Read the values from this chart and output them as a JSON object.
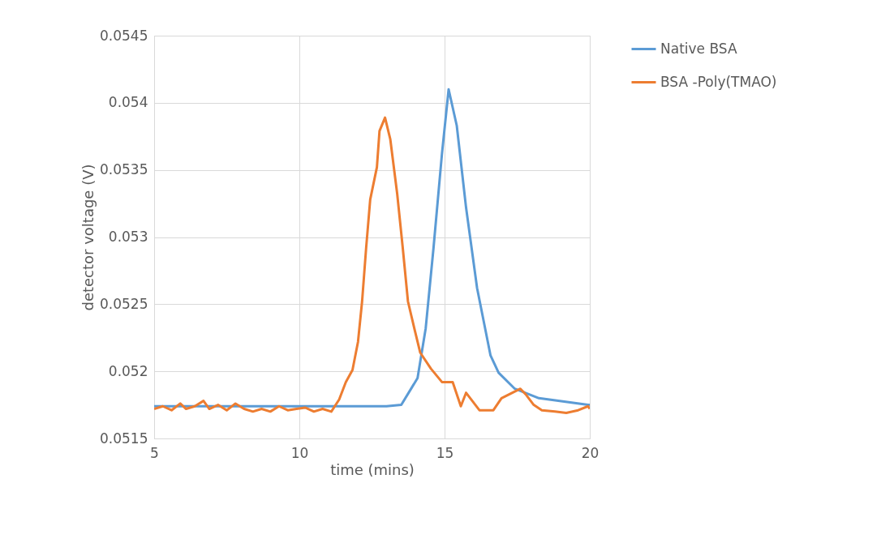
{
  "chart_data": {
    "type": "line",
    "xlabel": "time (mins)",
    "ylabel": "detector voltage (V)",
    "xlim": [
      5,
      20
    ],
    "xticks": [
      5,
      10,
      15,
      20
    ],
    "ylim": [
      0.0515,
      0.0545
    ],
    "yticks": [
      0.0515,
      0.052,
      0.0525,
      0.053,
      0.0535,
      0.054,
      0.0545
    ],
    "grid": true,
    "legend": "top right",
    "line_style": "solid",
    "marker": "none",
    "series": [
      {
        "name": "Native  BSA",
        "color": "#5b9bd5",
        "x": [
          5,
          8,
          11,
          13,
          13.51,
          14.07,
          14.35,
          14.62,
          14.91,
          15.14,
          15.42,
          15.74,
          16.12,
          16.58,
          16.86,
          17.42,
          18.25,
          19.94,
          20
        ],
        "values": [
          0.05174,
          0.05174,
          0.05174,
          0.05174,
          0.05175,
          0.05195,
          0.05232,
          0.05292,
          0.05362,
          0.0541,
          0.05383,
          0.05322,
          0.05262,
          0.05212,
          0.05199,
          0.05187,
          0.0518,
          0.05175,
          0.05175
        ]
      },
      {
        "name": "BSA  -Poly(TMAO)",
        "color": "#ed7d31",
        "x": [
          5,
          5.3,
          5.6,
          5.9,
          6.1,
          6.4,
          6.7,
          6.9,
          7.2,
          7.5,
          7.8,
          8.1,
          8.4,
          8.7,
          9.0,
          9.3,
          9.6,
          9.9,
          10.2,
          10.5,
          10.8,
          11.1,
          11.37,
          11.6,
          11.83,
          12.02,
          12.16,
          12.3,
          12.44,
          12.67,
          12.76,
          12.95,
          13.13,
          13.37,
          13.56,
          13.74,
          13.98,
          14.16,
          14.53,
          14.91,
          15.28,
          15.56,
          15.74,
          16.2,
          16.68,
          16.96,
          17.61,
          17.79,
          18.07,
          18.35,
          18.8,
          19.19,
          19.6,
          19.94,
          20
        ],
        "values": [
          0.05172,
          0.05174,
          0.05171,
          0.05176,
          0.05172,
          0.05174,
          0.05178,
          0.05172,
          0.05175,
          0.05171,
          0.05176,
          0.05172,
          0.0517,
          0.05172,
          0.0517,
          0.05174,
          0.05171,
          0.05172,
          0.05173,
          0.0517,
          0.05172,
          0.0517,
          0.05179,
          0.05192,
          0.05201,
          0.05222,
          0.05252,
          0.05292,
          0.05328,
          0.05352,
          0.05379,
          0.05389,
          0.05373,
          0.05332,
          0.05292,
          0.05252,
          0.0523,
          0.05214,
          0.05202,
          0.05192,
          0.05192,
          0.05174,
          0.05184,
          0.05171,
          0.05171,
          0.0518,
          0.05187,
          0.05183,
          0.05175,
          0.05171,
          0.0517,
          0.05169,
          0.05171,
          0.05174,
          0.05172
        ]
      }
    ]
  }
}
